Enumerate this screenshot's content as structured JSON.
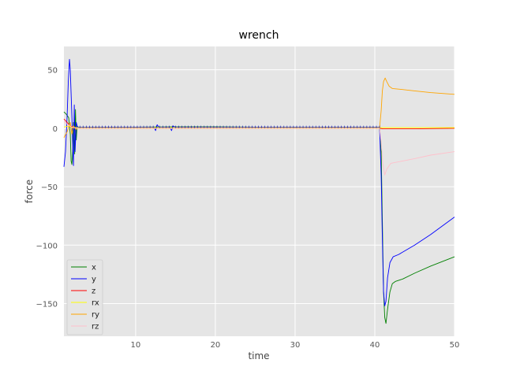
{
  "chart_data": {
    "type": "line",
    "title": "wrench",
    "xlabel": "time",
    "ylabel": "force",
    "xlim": [
      1,
      50
    ],
    "ylim": [
      -178,
      70
    ],
    "xticks": [
      10,
      20,
      30,
      40,
      50
    ],
    "yticks": [
      50,
      0,
      -50,
      -100,
      -150
    ],
    "ytick_labels": [
      "50",
      "0",
      "−50",
      "−100",
      "−150"
    ],
    "grid": true,
    "legend_position": "lower-left",
    "series": [
      {
        "name": "x",
        "color": "#008000",
        "points": [
          [
            1.0,
            14
          ],
          [
            1.3,
            12
          ],
          [
            1.6,
            9
          ],
          [
            1.8,
            -5
          ],
          [
            1.9,
            -28
          ],
          [
            2.0,
            -31
          ],
          [
            2.1,
            -20
          ],
          [
            2.2,
            5
          ],
          [
            2.35,
            -22
          ],
          [
            2.45,
            16
          ],
          [
            2.55,
            -10
          ],
          [
            2.65,
            2
          ],
          [
            2.8,
            1
          ],
          [
            5,
            1
          ],
          [
            10,
            1
          ],
          [
            15,
            1.2
          ],
          [
            20,
            1.2
          ],
          [
            25,
            1
          ],
          [
            30,
            1
          ],
          [
            35,
            1
          ],
          [
            40,
            1
          ],
          [
            40.6,
            1
          ],
          [
            40.8,
            -20
          ],
          [
            40.95,
            -80
          ],
          [
            41.1,
            -140
          ],
          [
            41.25,
            -162
          ],
          [
            41.4,
            -167
          ],
          [
            41.6,
            -155
          ],
          [
            41.9,
            -140
          ],
          [
            42.2,
            -133
          ],
          [
            42.6,
            -131
          ],
          [
            43.5,
            -129
          ],
          [
            45,
            -124
          ],
          [
            47,
            -118
          ],
          [
            50,
            -110
          ]
        ]
      },
      {
        "name": "y",
        "color": "#0000ff",
        "points": [
          [
            1.0,
            -33
          ],
          [
            1.2,
            -20
          ],
          [
            1.4,
            10
          ],
          [
            1.55,
            40
          ],
          [
            1.7,
            59
          ],
          [
            1.8,
            50
          ],
          [
            1.9,
            30
          ],
          [
            2.0,
            10
          ],
          [
            2.1,
            -15
          ],
          [
            2.2,
            -32
          ],
          [
            2.3,
            20
          ],
          [
            2.4,
            -20
          ],
          [
            2.55,
            5
          ],
          [
            2.7,
            1
          ],
          [
            5,
            1
          ],
          [
            10,
            1
          ],
          [
            12.3,
            1
          ],
          [
            12.5,
            -2
          ],
          [
            12.7,
            3
          ],
          [
            12.9,
            1
          ],
          [
            14.3,
            1
          ],
          [
            14.5,
            -2
          ],
          [
            14.7,
            2
          ],
          [
            14.9,
            1
          ],
          [
            20,
            1
          ],
          [
            25,
            1
          ],
          [
            30,
            1
          ],
          [
            35,
            1
          ],
          [
            40,
            1
          ],
          [
            40.6,
            1
          ],
          [
            40.8,
            -40
          ],
          [
            40.95,
            -95
          ],
          [
            41.1,
            -140
          ],
          [
            41.25,
            -152
          ],
          [
            41.4,
            -148
          ],
          [
            41.6,
            -128
          ],
          [
            41.9,
            -115
          ],
          [
            42.3,
            -110
          ],
          [
            43,
            -108
          ],
          [
            45,
            -100
          ],
          [
            47,
            -91
          ],
          [
            50,
            -76
          ]
        ]
      },
      {
        "name": "z",
        "color": "#ff0000",
        "points": [
          [
            1.0,
            8
          ],
          [
            1.4,
            5
          ],
          [
            1.8,
            2
          ],
          [
            2.2,
            1
          ],
          [
            2.8,
            0
          ],
          [
            10,
            0
          ],
          [
            20,
            0
          ],
          [
            30,
            0
          ],
          [
            40,
            0
          ],
          [
            40.6,
            0
          ],
          [
            41,
            -0.5
          ],
          [
            45,
            -0.5
          ],
          [
            50,
            0
          ]
        ]
      },
      {
        "name": "rx",
        "color": "#ffff00",
        "points": [
          [
            1.0,
            1
          ],
          [
            1.6,
            2
          ],
          [
            2.0,
            0.5
          ],
          [
            2.6,
            0.5
          ],
          [
            10,
            0.5
          ],
          [
            20,
            0.5
          ],
          [
            30,
            0.5
          ],
          [
            40,
            0.5
          ],
          [
            41,
            0.5
          ],
          [
            50,
            0.5
          ]
        ]
      },
      {
        "name": "ry",
        "color": "#ffa500",
        "points": [
          [
            1.0,
            -8
          ],
          [
            1.4,
            -3
          ],
          [
            1.8,
            5
          ],
          [
            2.0,
            -5
          ],
          [
            2.2,
            2
          ],
          [
            2.5,
            -1
          ],
          [
            2.8,
            0
          ],
          [
            10,
            0
          ],
          [
            20,
            0
          ],
          [
            30,
            0
          ],
          [
            40,
            0
          ],
          [
            40.6,
            0
          ],
          [
            40.8,
            15
          ],
          [
            40.95,
            32
          ],
          [
            41.1,
            40
          ],
          [
            41.3,
            43
          ],
          [
            41.5,
            40
          ],
          [
            41.8,
            36
          ],
          [
            42.2,
            34
          ],
          [
            43,
            33.5
          ],
          [
            45,
            32
          ],
          [
            47,
            30.5
          ],
          [
            50,
            29
          ]
        ]
      },
      {
        "name": "rz",
        "color": "#ffc0cb",
        "points": [
          [
            1.0,
            6
          ],
          [
            1.5,
            3
          ],
          [
            2.0,
            1
          ],
          [
            2.6,
            0
          ],
          [
            10,
            0
          ],
          [
            20,
            0
          ],
          [
            30,
            0
          ],
          [
            40,
            0
          ],
          [
            40.6,
            0
          ],
          [
            40.8,
            -12
          ],
          [
            41.0,
            -30
          ],
          [
            41.25,
            -40
          ],
          [
            41.5,
            -35
          ],
          [
            42,
            -30
          ],
          [
            43.5,
            -28
          ],
          [
            45,
            -26
          ],
          [
            47,
            -23
          ],
          [
            50,
            -20
          ]
        ]
      }
    ]
  }
}
